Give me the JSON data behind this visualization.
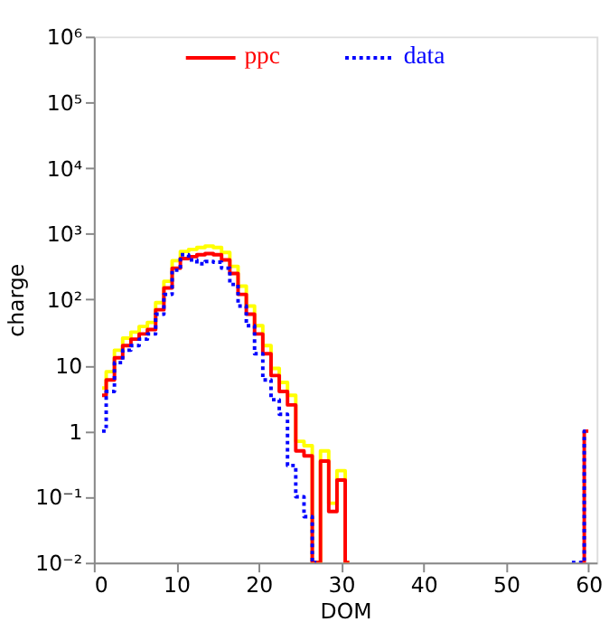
{
  "chart_data": {
    "type": "step",
    "xlabel": "DOM",
    "ylabel": "charge",
    "x": [
      1,
      2,
      3,
      4,
      5,
      6,
      7,
      8,
      9,
      10,
      11,
      12,
      13,
      14,
      15,
      16,
      17,
      18,
      19,
      20,
      21,
      22,
      23,
      24,
      25,
      26,
      27,
      28,
      29,
      30,
      31,
      32,
      33,
      34,
      35,
      36,
      37,
      38,
      39,
      40,
      41,
      42,
      43,
      44,
      45,
      46,
      47,
      48,
      49,
      50,
      51,
      52,
      53,
      54,
      55,
      56,
      57,
      58,
      59,
      60
    ],
    "series": [
      {
        "color": "#ffff00",
        "line_style": "solid",
        "values": [
          4.5,
          8,
          17,
          26,
          32,
          39,
          45,
          90,
          190,
          390,
          540,
          580,
          620,
          650,
          620,
          520,
          320,
          160,
          80,
          40,
          20,
          9,
          5.5,
          3.5,
          0.7,
          0.6,
          0.01,
          0.5,
          0.08,
          0.25,
          0.01,
          null,
          null,
          null,
          null,
          null,
          null,
          null,
          null,
          null,
          null,
          null,
          null,
          null,
          null,
          null,
          null,
          null,
          null,
          null,
          null,
          null,
          null,
          null,
          null,
          null,
          null,
          null,
          null,
          null
        ]
      },
      {
        "name": "ppc",
        "color": "#ff0000",
        "line_style": "solid",
        "values": [
          3.5,
          6,
          13,
          20,
          25,
          30,
          35,
          70,
          150,
          300,
          420,
          450,
          480,
          500,
          480,
          400,
          250,
          120,
          60,
          30,
          15,
          7,
          4,
          2.5,
          0.5,
          0.42,
          0.01,
          0.35,
          0.06,
          0.18,
          0.01,
          null,
          null,
          null,
          null,
          null,
          null,
          null,
          null,
          null,
          null,
          null,
          null,
          null,
          null,
          null,
          null,
          null,
          null,
          null,
          null,
          null,
          null,
          null,
          null,
          null,
          null,
          null,
          0.01,
          1
        ]
      },
      {
        "name": "data",
        "color": "#0000ff",
        "line_style": "dotted",
        "values": [
          1,
          4,
          11,
          17,
          20,
          25,
          30,
          60,
          120,
          280,
          480,
          400,
          350,
          380,
          370,
          300,
          170,
          80,
          40,
          15,
          6,
          3,
          1.8,
          0.3,
          0.1,
          0.05,
          0.01,
          null,
          null,
          null,
          null,
          null,
          null,
          null,
          null,
          null,
          null,
          null,
          null,
          null,
          null,
          null,
          null,
          null,
          null,
          null,
          null,
          null,
          null,
          null,
          null,
          null,
          null,
          null,
          null,
          null,
          null,
          0.01,
          0.01,
          1
        ]
      }
    ],
    "xlim": [
      0,
      61
    ],
    "xticks": [
      0,
      10,
      20,
      30,
      40,
      50,
      60
    ],
    "ylim": [
      0.01,
      1000000
    ],
    "log": "y",
    "yticks": [
      {
        "value": 0.01,
        "label": "10⁻²"
      },
      {
        "value": 0.1,
        "label": "10⁻¹"
      },
      1,
      10,
      {
        "value": 100,
        "label": "10²"
      },
      {
        "value": 1000,
        "label": "10³"
      },
      {
        "value": 10000,
        "label": "10⁴"
      },
      {
        "value": 100000,
        "label": "10⁵"
      },
      {
        "value": 1000000,
        "label": "10⁶"
      }
    ],
    "legend": "top",
    "grid": false
  }
}
